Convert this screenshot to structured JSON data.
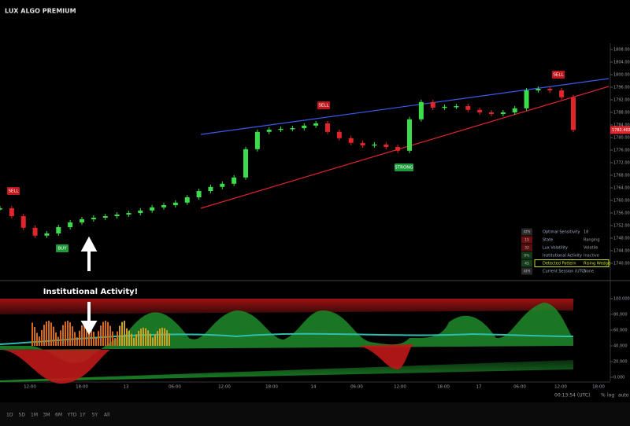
{
  "header": {
    "title": "LUX ALGO PREMIUM"
  },
  "chart_data": {
    "type": "candlestick",
    "values": [
      1757.5,
      1755,
      1751.3,
      1748.8,
      1749.5,
      1751.5,
      1753,
      1754,
      1754.5,
      1755,
      1755.5,
      1756,
      1756.8,
      1757.8,
      1758.5,
      1759.3,
      1761,
      1763,
      1764.3,
      1765.3,
      1767.3,
      1776.3,
      1781.8,
      1782.5,
      1782.8,
      1783,
      1783.8,
      1784.5,
      1781.8,
      1779.8,
      1778.3,
      1777.5,
      1777.8,
      1777,
      1775.8,
      1785.8,
      1791.3,
      1789.5,
      1789.8,
      1790,
      1788.8,
      1788,
      1787.5,
      1788,
      1789.3,
      1795,
      1795.5,
      1795,
      1792.8,
      1782.402
    ],
    "colors": {
      "up": "#3ddc4a",
      "down": "#e0252b"
    },
    "ylim": [
      1734.75,
      1809.25
    ],
    "yticks": [
      {
        "value": 1808,
        "label": "1808.000"
      },
      {
        "value": 1804,
        "label": "1804.000"
      },
      {
        "value": 1800,
        "label": "1800.000"
      },
      {
        "value": 1796,
        "label": "1796.000"
      },
      {
        "value": 1792,
        "label": "1792.000"
      },
      {
        "value": 1788,
        "label": "1788.000"
      },
      {
        "value": 1784,
        "label": "1784.000"
      },
      {
        "value": 1780,
        "label": "1780.000"
      },
      {
        "value": 1776,
        "label": "1776.000"
      },
      {
        "value": 1772,
        "label": "1772.000"
      },
      {
        "value": 1768,
        "label": "1768.000"
      },
      {
        "value": 1764,
        "label": "1764.000"
      },
      {
        "value": 1760,
        "label": "1760.000"
      },
      {
        "value": 1756,
        "label": "1756.000"
      },
      {
        "value": 1752,
        "label": "1752.000"
      },
      {
        "value": 1748,
        "label": "1748.000"
      },
      {
        "value": 1744,
        "label": "1744.000"
      },
      {
        "value": 1740,
        "label": "1740.000"
      }
    ],
    "x_labels": [
      "12:00",
      "18:00",
      "13",
      "06:00",
      "12:00",
      "18:00",
      "14",
      "06:00",
      "12:00",
      "18:00",
      "17",
      "06:00",
      "12:00",
      "18:00"
    ],
    "signals": [
      "SELL",
      "SELL",
      "SELL",
      "BUY",
      "STRONG"
    ],
    "annotation": "Institutional Activity!",
    "oscillator": {
      "ylim": [
        -5,
        122
      ],
      "yticks": [
        {
          "value": 100,
          "label": "100.000"
        },
        {
          "value": 80,
          "label": "80.000"
        },
        {
          "value": 60,
          "label": "60.000"
        },
        {
          "value": 40,
          "label": "40.000"
        },
        {
          "value": 20,
          "label": "20.000"
        },
        {
          "value": 0,
          "label": "0.000"
        }
      ]
    }
  },
  "dashboard": {
    "rows": [
      {
        "key": "ATR",
        "label": "Optimal Sensitivity",
        "value": "18"
      },
      {
        "key": "15",
        "label": "State",
        "value": "Ranging"
      },
      {
        "key": "32",
        "label": "Lux Volatility",
        "value": "Volatile"
      },
      {
        "key": "0%",
        "label": "Institutional Activity",
        "value": "Inactive"
      },
      {
        "key": "45",
        "label": "Detected Pattern",
        "value": "Rising Wedge"
      },
      {
        "key": "ATR",
        "label": "Current Session (UTC)",
        "value": "None"
      }
    ]
  },
  "status": {
    "clock": "00:13:54 (UTC)",
    "percent": "%",
    "log": "log",
    "auto": "auto"
  },
  "timeframes": [
    "1D",
    "5D",
    "1M",
    "3M",
    "6M",
    "YTD",
    "1Y",
    "5Y",
    "All"
  ]
}
